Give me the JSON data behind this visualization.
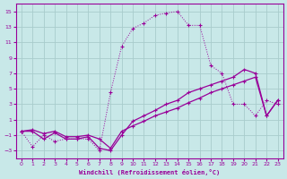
{
  "xlabel": "Windchill (Refroidissement éolien,°C)",
  "xlim": [
    -0.5,
    23.5
  ],
  "ylim": [
    -4,
    16
  ],
  "yticks": [
    -3,
    -1,
    1,
    3,
    5,
    7,
    9,
    11,
    13,
    15
  ],
  "xticks": [
    0,
    1,
    2,
    3,
    4,
    5,
    6,
    7,
    8,
    9,
    10,
    11,
    12,
    13,
    14,
    15,
    16,
    17,
    18,
    19,
    20,
    21,
    22,
    23
  ],
  "bg_color": "#c8e8e8",
  "line_color": "#990099",
  "grid_color": "#a8cccc",
  "line1_y": [
    -0.5,
    -2.5,
    -1.0,
    -1.8,
    -1.5,
    -1.5,
    -1.5,
    -3.0,
    4.5,
    10.5,
    12.8,
    13.5,
    14.5,
    14.8,
    15.0,
    13.2,
    13.2,
    8.0,
    7.0,
    3.0,
    3.0,
    1.5,
    3.5,
    3.0
  ],
  "line2_y": [
    -0.5,
    -0.5,
    -1.5,
    -0.7,
    -1.5,
    -1.5,
    -1.2,
    -2.7,
    -3.0,
    -1.0,
    0.8,
    1.5,
    2.2,
    3.0,
    3.5,
    4.5,
    5.0,
    5.5,
    6.0,
    6.5,
    7.5,
    7.0,
    1.5,
    3.5
  ],
  "line3_y": [
    -0.5,
    -0.3,
    -0.8,
    -0.5,
    -1.2,
    -1.2,
    -1.0,
    -1.5,
    -2.7,
    -0.5,
    0.2,
    0.8,
    1.5,
    2.0,
    2.5,
    3.2,
    3.8,
    4.5,
    5.0,
    5.5,
    6.0,
    6.5,
    1.5,
    3.5
  ]
}
